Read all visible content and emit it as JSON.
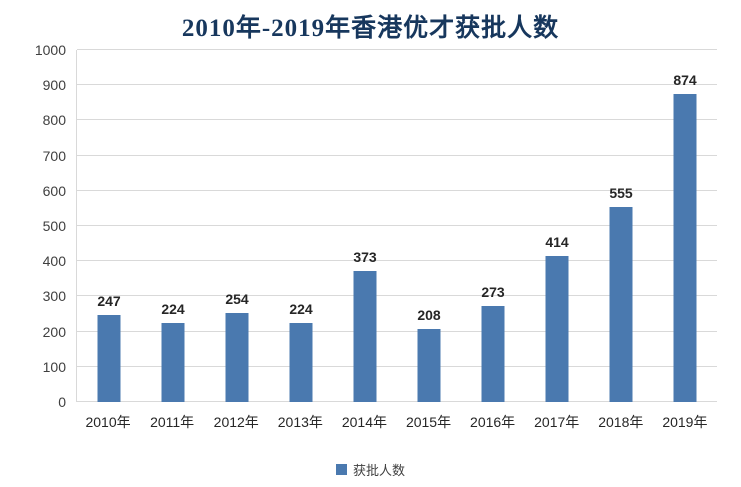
{
  "chart_data": {
    "type": "bar",
    "title": "2010年-2019年香港优才获批人数",
    "categories": [
      "2010年",
      "2011年",
      "2012年",
      "2013年",
      "2014年",
      "2015年",
      "2016年",
      "2017年",
      "2018年",
      "2019年"
    ],
    "values": [
      247,
      224,
      254,
      224,
      373,
      208,
      273,
      414,
      555,
      874
    ],
    "legend": [
      "获批人数"
    ],
    "xlabel": "",
    "ylabel": "",
    "ylim": [
      0,
      1000
    ],
    "ytick_step": 100,
    "grid": true,
    "legend_position": "bottom",
    "colors": {
      "bar": "#4a79af",
      "title": "#17375d",
      "gridline": "#d9d9d9",
      "axis_text": "#3f3f3f",
      "value_label": "#262626"
    }
  }
}
